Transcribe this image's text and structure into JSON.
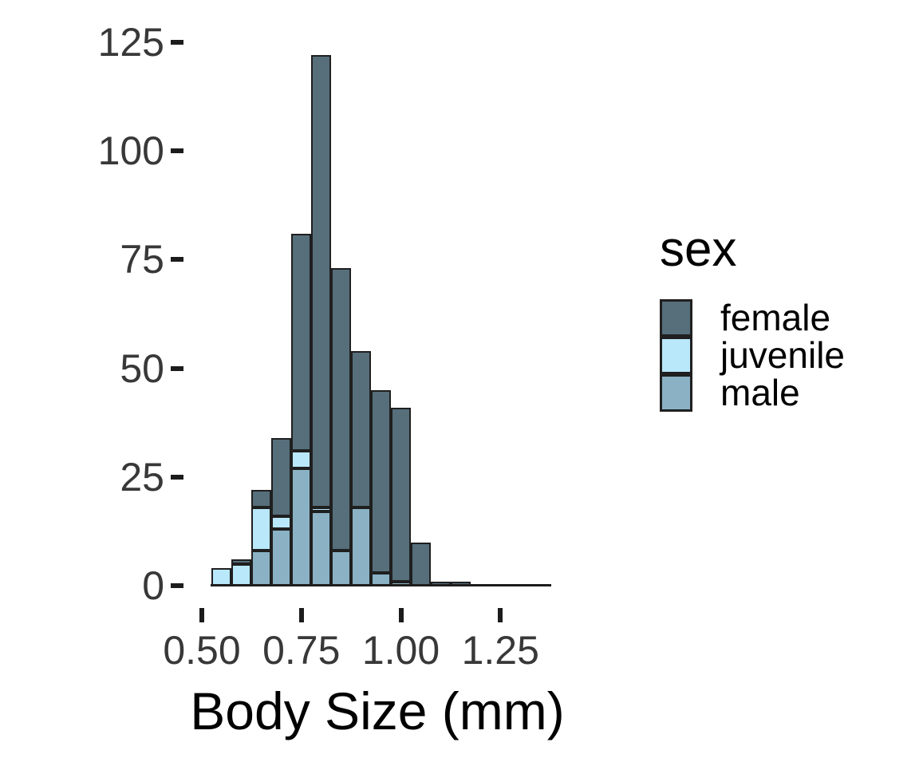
{
  "figure": {
    "background_color": "#FFFFFF",
    "text_color": "#383838",
    "axis_color": "#1C1C1C",
    "bar_border_color": "#1F1F1F"
  },
  "chart_data": {
    "type": "bar",
    "subtype": "stacked-histogram",
    "title": "",
    "xlabel": "Body Size (mm)",
    "ylabel": "",
    "bin_width": 0.05,
    "bin_centers": [
      0.55,
      0.6,
      0.65,
      0.7,
      0.75,
      0.8,
      0.85,
      0.9,
      0.95,
      1.0,
      1.05,
      1.1,
      1.15
    ],
    "series": [
      {
        "name": "female",
        "color": "#566F7B",
        "values": [
          0,
          1,
          4,
          18,
          50,
          104,
          65,
          36,
          42,
          40,
          10,
          1,
          1
        ]
      },
      {
        "name": "juvenile",
        "color": "#B9E8FA",
        "values": [
          4,
          5,
          10,
          3,
          4,
          1,
          0,
          0,
          0,
          0,
          0,
          0,
          0
        ]
      },
      {
        "name": "male",
        "color": "#8AB2C4",
        "values": [
          0,
          0,
          8,
          13,
          27,
          17,
          8,
          18,
          3,
          1,
          0,
          0,
          0
        ]
      }
    ],
    "bar_totals": [
      4,
      6,
      22,
      34,
      81,
      122,
      73,
      54,
      45,
      41,
      10,
      1,
      1
    ],
    "stack_order_bottom_to_top": [
      "male",
      "juvenile",
      "female"
    ],
    "x_ticks": {
      "values": [
        0.5,
        0.75,
        1.0,
        1.25
      ],
      "labels": [
        "0.50",
        "0.75",
        "1.00",
        "1.25"
      ]
    },
    "y_ticks": {
      "values": [
        0,
        25,
        50,
        75,
        100,
        125
      ],
      "labels": [
        "0",
        "25",
        "50",
        "75",
        "100",
        "125"
      ]
    },
    "xlim": [
      0.5,
      1.38
    ],
    "ylim": [
      0,
      125
    ],
    "grid": false,
    "legend": {
      "title": "sex",
      "position": "right",
      "entries": [
        "female",
        "juvenile",
        "male"
      ]
    }
  }
}
